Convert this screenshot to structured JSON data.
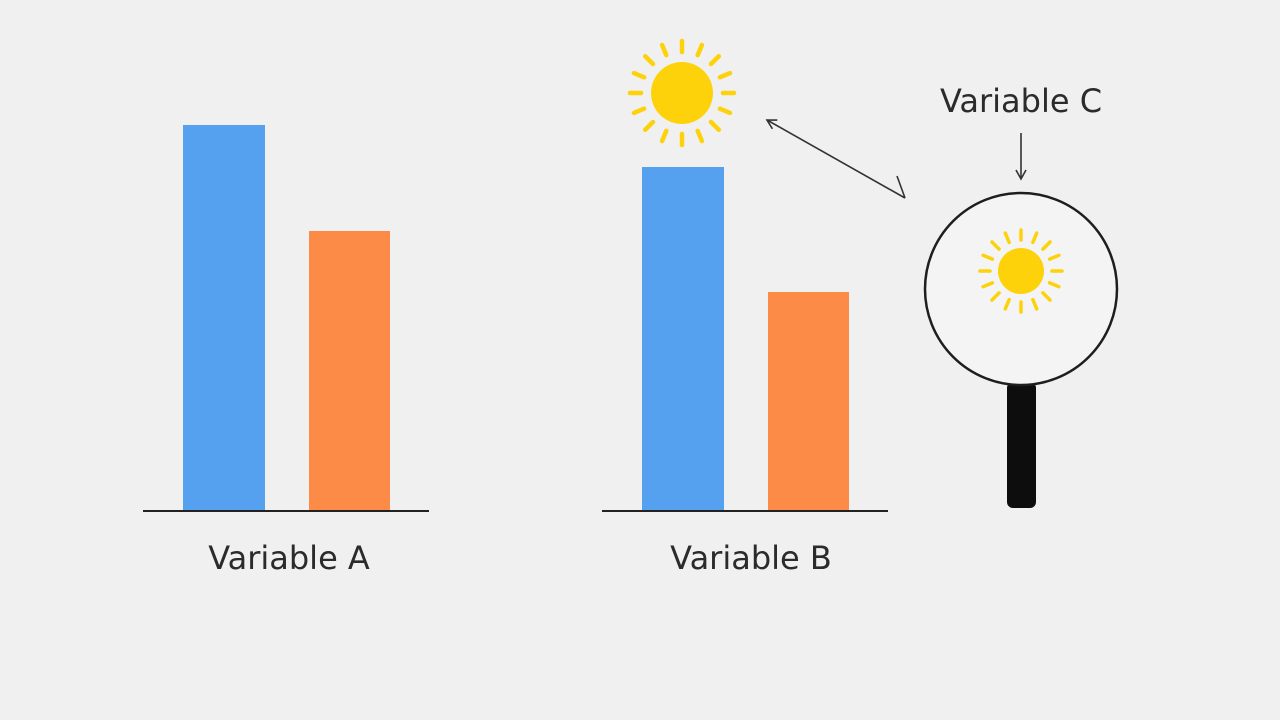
{
  "panels": [
    {
      "label": "Variable A"
    },
    {
      "label": "Variable B"
    }
  ],
  "callout": {
    "label": "Variable C"
  }
}
